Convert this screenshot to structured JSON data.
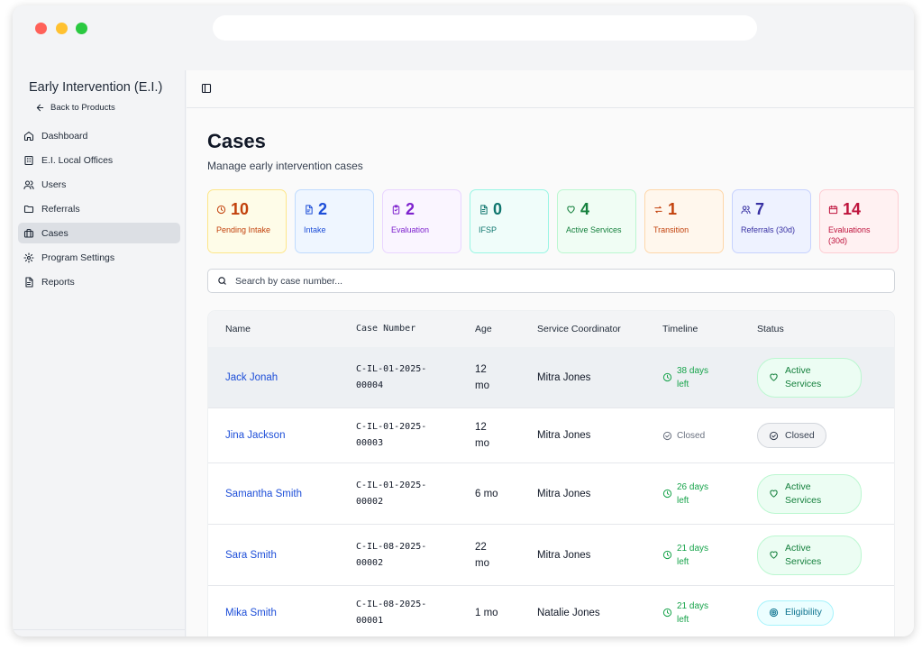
{
  "app": {
    "title": "Early Intervention (E.I.)",
    "back_label": "Back to Products"
  },
  "nav": [
    {
      "label": "Dashboard",
      "icon": "home-icon"
    },
    {
      "label": "E.I. Local Offices",
      "icon": "building-icon"
    },
    {
      "label": "Users",
      "icon": "users-icon"
    },
    {
      "label": "Referrals",
      "icon": "folder-icon"
    },
    {
      "label": "Cases",
      "icon": "briefcase-icon",
      "active": true
    },
    {
      "label": "Program Settings",
      "icon": "gear-icon"
    },
    {
      "label": "Reports",
      "icon": "document-icon"
    }
  ],
  "page": {
    "title": "Cases",
    "subtitle": "Manage early intervention cases"
  },
  "stats": [
    {
      "value": "10",
      "label": "Pending Intake",
      "icon": "clock-icon",
      "color": "#c2410c",
      "bg": "#fefce8",
      "border": "#fde68a"
    },
    {
      "value": "2",
      "label": "Intake",
      "icon": "file-icon",
      "color": "#1d4ed8",
      "bg": "#eff6ff",
      "border": "#bfdbfe"
    },
    {
      "value": "2",
      "label": "Evaluation",
      "icon": "clipboard-icon",
      "color": "#7e22ce",
      "bg": "#faf5ff",
      "border": "#e9d5ff"
    },
    {
      "value": "0",
      "label": "IFSP",
      "icon": "file-text-icon",
      "color": "#0f766e",
      "bg": "#f0fdfa",
      "border": "#99f6e4"
    },
    {
      "value": "4",
      "label": "Active Services",
      "icon": "heart-icon",
      "color": "#15803d",
      "bg": "#f0fdf4",
      "border": "#bbf7d0"
    },
    {
      "value": "1",
      "label": "Transition",
      "icon": "arrows-icon",
      "color": "#c2410c",
      "bg": "#fff7ed",
      "border": "#fed7aa"
    },
    {
      "value": "7",
      "label": "Referrals (30d)",
      "icon": "users-icon",
      "color": "#3730a3",
      "bg": "#eef2ff",
      "border": "#c7d2fe"
    },
    {
      "value": "14",
      "label": "Evaluations (30d)",
      "icon": "calendar-icon",
      "color": "#be123c",
      "bg": "#fff1f2",
      "border": "#fecdd3"
    }
  ],
  "search": {
    "placeholder": "Search by case number..."
  },
  "table": {
    "headers": [
      "Name",
      "Case Number",
      "Age",
      "Service Coordinator",
      "Timeline",
      "Status"
    ],
    "rows": [
      {
        "name": "Jack Jonah",
        "case": "C-IL-01-2025-\n00004",
        "age": "12\nmo",
        "coordinator": "Mitra Jones",
        "timeline": "38 days\nleft",
        "timeline_type": "green",
        "status": "Active\nServices",
        "status_type": "active"
      },
      {
        "name": "Jina Jackson",
        "case": "C-IL-01-2025-\n00003",
        "age": "12\nmo",
        "coordinator": "Mitra Jones",
        "timeline": "Closed",
        "timeline_type": "gray",
        "status": "Closed",
        "status_type": "closed"
      },
      {
        "name": "Samantha Smith",
        "case": "C-IL-01-2025-\n00002",
        "age": "6 mo",
        "coordinator": "Mitra Jones",
        "timeline": "26 days\nleft",
        "timeline_type": "green",
        "status": "Active\nServices",
        "status_type": "active"
      },
      {
        "name": "Sara Smith",
        "case": "C-IL-08-2025-\n00002",
        "age": "22\nmo",
        "coordinator": "Mitra Jones",
        "timeline": "21 days\nleft",
        "timeline_type": "green",
        "status": "Active\nServices",
        "status_type": "active"
      },
      {
        "name": "Mika Smith",
        "case": "C-IL-08-2025-\n00001",
        "age": "1 mo",
        "coordinator": "Natalie Jones",
        "timeline": "21 days\nleft",
        "timeline_type": "green",
        "status": "Eligibility",
        "status_type": "elig"
      }
    ]
  }
}
